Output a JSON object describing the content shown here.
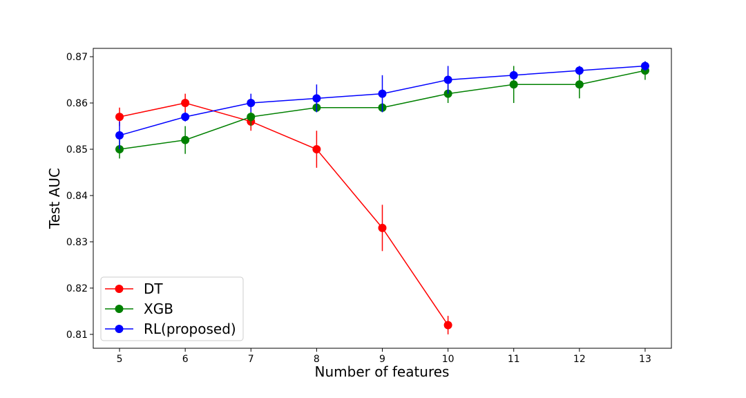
{
  "chart_data": {
    "type": "line",
    "title": "",
    "xlabel": "Number of features",
    "ylabel": "Test AUC",
    "xlim": [
      4.6,
      13.4
    ],
    "ylim": [
      0.807,
      0.8718
    ],
    "x_ticks": [
      "5",
      "6",
      "7",
      "8",
      "9",
      "10",
      "11",
      "12",
      "13"
    ],
    "y_ticks": [
      "0.81",
      "0.82",
      "0.83",
      "0.84",
      "0.85",
      "0.86",
      "0.87"
    ],
    "grid": false,
    "legend_position": "lower-left",
    "series": [
      {
        "name": "DT",
        "color": "#ff0000",
        "x": [
          5,
          6,
          7,
          8,
          9,
          10
        ],
        "y": [
          0.857,
          0.86,
          0.856,
          0.85,
          0.833,
          0.812
        ],
        "err": [
          0.002,
          0.002,
          0.002,
          0.004,
          0.005,
          0.002
        ]
      },
      {
        "name": "XGB",
        "color": "#008000",
        "x": [
          5,
          6,
          7,
          8,
          9,
          10,
          11,
          12,
          13
        ],
        "y": [
          0.85,
          0.852,
          0.857,
          0.859,
          0.859,
          0.862,
          0.864,
          0.864,
          0.867
        ],
        "err": [
          0.002,
          0.003,
          0.002,
          0.001,
          0.001,
          0.002,
          0.004,
          0.003,
          0.002
        ]
      },
      {
        "name": "RL(proposed)",
        "color": "#0000ff",
        "x": [
          5,
          6,
          7,
          8,
          9,
          10,
          11,
          12,
          13
        ],
        "y": [
          0.853,
          0.857,
          0.86,
          0.861,
          0.862,
          0.865,
          0.866,
          0.867,
          0.868
        ],
        "err": [
          0.003,
          0.001,
          0.002,
          0.003,
          0.004,
          0.003,
          0.001,
          0.001,
          0.001
        ]
      }
    ]
  }
}
